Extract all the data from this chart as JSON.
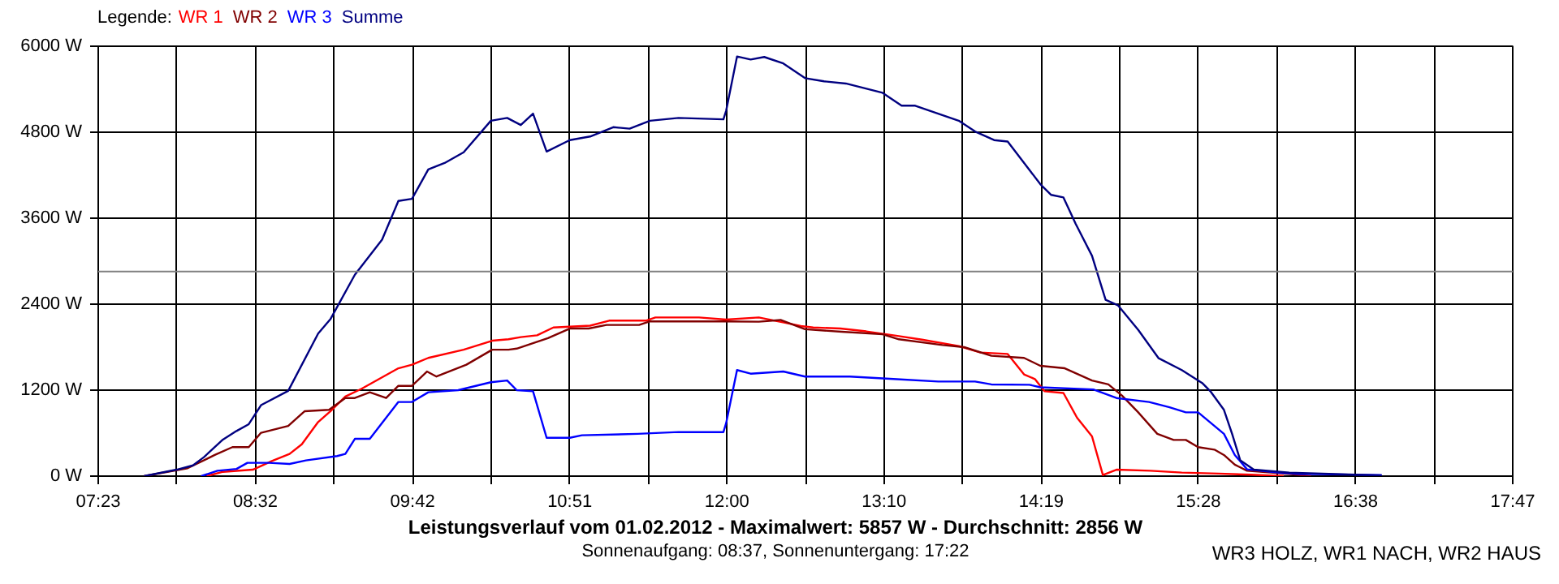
{
  "chart_data": {
    "type": "line",
    "title": "Leistungsverlauf vom 01.02.2012 - Maximalwert: 5857 W - Durchschnitt: 2856 W",
    "subtitle": "Sonnenaufgang: 08:37, Sonnenuntergang: 17:22",
    "annotations": [
      "WR3 HOLZ, WR1 NACH, WR2 HAUS"
    ],
    "legend_title": "Legende:",
    "legend": "top left",
    "grid": true,
    "xlim": [
      7.3833,
      17.7833
    ],
    "xticks": [
      {
        "value": 7.3833,
        "label": "07:23"
      },
      {
        "value": 7.9611,
        "label": null
      },
      {
        "value": 8.5389,
        "label": "08:32"
      },
      {
        "value": 9.1167,
        "label": null
      },
      {
        "value": 9.6944,
        "label": "09:42"
      },
      {
        "value": 10.2722,
        "label": null
      },
      {
        "value": 10.85,
        "label": "10:51"
      },
      {
        "value": 11.4278,
        "label": null
      },
      {
        "value": 12.0056,
        "label": "12:00"
      },
      {
        "value": 12.5833,
        "label": null
      },
      {
        "value": 13.1611,
        "label": "13:10"
      },
      {
        "value": 13.7389,
        "label": null
      },
      {
        "value": 14.3167,
        "label": "14:19"
      },
      {
        "value": 14.8944,
        "label": null
      },
      {
        "value": 15.4722,
        "label": "15:28"
      },
      {
        "value": 16.05,
        "label": null
      },
      {
        "value": 16.6278,
        "label": "16:38"
      },
      {
        "value": 17.2056,
        "label": null
      },
      {
        "value": 17.7833,
        "label": "17:47"
      }
    ],
    "ylim": [
      0,
      6000
    ],
    "yticks": [
      {
        "value": 0,
        "label": "0 W"
      },
      {
        "value": 1200,
        "label": "1200 W"
      },
      {
        "value": 2400,
        "label": "2400 W"
      },
      {
        "value": 3600,
        "label": "3600 W"
      },
      {
        "value": 4800,
        "label": "4800 W"
      },
      {
        "value": 6000,
        "label": "6000 W"
      }
    ],
    "ref_lines": [
      {
        "axis": "y",
        "value": 2856,
        "color": "#808080"
      }
    ],
    "series": [
      {
        "name": "WR 1",
        "color": "#ff0000",
        "x": [
          8.18,
          8.3,
          8.52,
          8.66,
          8.79,
          8.88,
          9.0,
          9.09,
          9.2,
          9.32,
          9.59,
          9.69,
          9.81,
          10.07,
          10.28,
          10.4,
          10.49,
          10.61,
          10.73,
          11.0,
          11.14,
          11.41,
          11.48,
          11.8,
          12.0,
          12.24,
          12.55,
          12.64,
          12.84,
          13.03,
          13.23,
          13.44,
          13.71,
          13.87,
          14.07,
          14.19,
          14.27,
          14.34,
          14.48,
          14.58,
          14.69,
          14.77,
          14.87,
          15.12,
          15.35,
          15.62,
          15.86,
          16.1
        ],
        "values": [
          0,
          60,
          90,
          210,
          310,
          445,
          755,
          905,
          1110,
          1220,
          1505,
          1555,
          1650,
          1765,
          1890,
          1910,
          1940,
          1965,
          2075,
          2100,
          2170,
          2170,
          2215,
          2215,
          2185,
          2215,
          2095,
          2075,
          2060,
          2020,
          1965,
          1905,
          1815,
          1725,
          1705,
          1420,
          1355,
          1185,
          1160,
          815,
          555,
          15,
          90,
          75,
          50,
          35,
          20,
          0
        ]
      },
      {
        "name": "WR 2",
        "color": "#800000",
        "x": [
          7.72,
          8.04,
          8.24,
          8.37,
          8.49,
          8.58,
          8.78,
          8.9,
          9.08,
          9.2,
          9.27,
          9.38,
          9.5,
          9.59,
          9.69,
          9.8,
          9.87,
          10.09,
          10.28,
          10.4,
          10.46,
          10.69,
          10.85,
          10.99,
          11.12,
          11.36,
          11.44,
          11.98,
          12.24,
          12.4,
          12.58,
          12.85,
          13.15,
          13.27,
          13.59,
          13.75,
          13.95,
          14.19,
          14.31,
          14.49,
          14.69,
          14.81,
          14.91,
          15.03,
          15.17,
          15.29,
          15.38,
          15.47,
          15.59,
          15.66,
          15.74,
          15.83,
          16.14,
          16.3
        ],
        "values": [
          0,
          110,
          295,
          405,
          405,
          605,
          700,
          905,
          925,
          1090,
          1090,
          1170,
          1090,
          1260,
          1260,
          1460,
          1390,
          1555,
          1765,
          1765,
          1780,
          1925,
          2060,
          2060,
          2110,
          2110,
          2160,
          2160,
          2155,
          2180,
          2050,
          2015,
          1980,
          1910,
          1830,
          1800,
          1680,
          1650,
          1540,
          1505,
          1335,
          1280,
          1125,
          890,
          590,
          505,
          505,
          405,
          370,
          295,
          160,
          75,
          30,
          0
        ]
      },
      {
        "name": "WR 3",
        "color": "#0000ff",
        "x": [
          8.14,
          8.26,
          8.4,
          8.48,
          8.64,
          8.79,
          8.91,
          9.14,
          9.2,
          9.27,
          9.38,
          9.5,
          9.59,
          9.69,
          9.81,
          10.03,
          10.27,
          10.39,
          10.46,
          10.58,
          10.68,
          10.85,
          10.94,
          11.35,
          11.65,
          11.98,
          12.0,
          12.08,
          12.18,
          12.42,
          12.58,
          12.91,
          13.23,
          13.56,
          13.83,
          13.95,
          14.23,
          14.31,
          14.7,
          14.87,
          15.11,
          15.26,
          15.38,
          15.47,
          15.54,
          15.66,
          15.74,
          15.83,
          16.06,
          16.22,
          16.82
        ],
        "values": [
          0,
          75,
          100,
          185,
          185,
          170,
          220,
          280,
          310,
          520,
          520,
          815,
          1035,
          1035,
          1170,
          1200,
          1310,
          1335,
          1200,
          1185,
          535,
          535,
          570,
          590,
          615,
          615,
          740,
          1480,
          1430,
          1460,
          1390,
          1390,
          1355,
          1320,
          1320,
          1280,
          1275,
          1240,
          1210,
          1090,
          1035,
          960,
          890,
          890,
          780,
          590,
          295,
          95,
          50,
          30,
          15
        ]
      },
      {
        "name": "Summe",
        "color": "#000080",
        "x": [
          7.72,
          7.96,
          8.08,
          8.16,
          8.3,
          8.4,
          8.49,
          8.58,
          8.78,
          9.0,
          9.09,
          9.27,
          9.47,
          9.59,
          9.69,
          9.81,
          9.93,
          10.07,
          10.27,
          10.39,
          10.49,
          10.58,
          10.68,
          10.85,
          11.0,
          11.17,
          11.29,
          11.44,
          11.65,
          11.98,
          12.0,
          12.08,
          12.18,
          12.28,
          12.42,
          12.58,
          12.72,
          12.88,
          13.15,
          13.29,
          13.39,
          13.71,
          13.83,
          13.97,
          14.07,
          14.31,
          14.39,
          14.48,
          14.57,
          14.69,
          14.79,
          14.88,
          15.03,
          15.18,
          15.35,
          15.5,
          15.56,
          15.66,
          15.72,
          15.78,
          15.88,
          16.14,
          16.82
        ],
        "values": [
          0,
          90,
          150,
          265,
          510,
          630,
          725,
          990,
          1190,
          1990,
          2190,
          2810,
          3300,
          3840,
          3870,
          4280,
          4370,
          4520,
          4960,
          5000,
          4900,
          5060,
          4530,
          4690,
          4740,
          4870,
          4850,
          4960,
          5000,
          4980,
          5100,
          5857,
          5815,
          5850,
          5760,
          5555,
          5510,
          5480,
          5350,
          5170,
          5170,
          4960,
          4810,
          4690,
          4670,
          4075,
          3925,
          3890,
          3520,
          3075,
          2460,
          2385,
          2040,
          1645,
          1480,
          1300,
          1185,
          925,
          590,
          220,
          90,
          50,
          10
        ]
      }
    ]
  }
}
